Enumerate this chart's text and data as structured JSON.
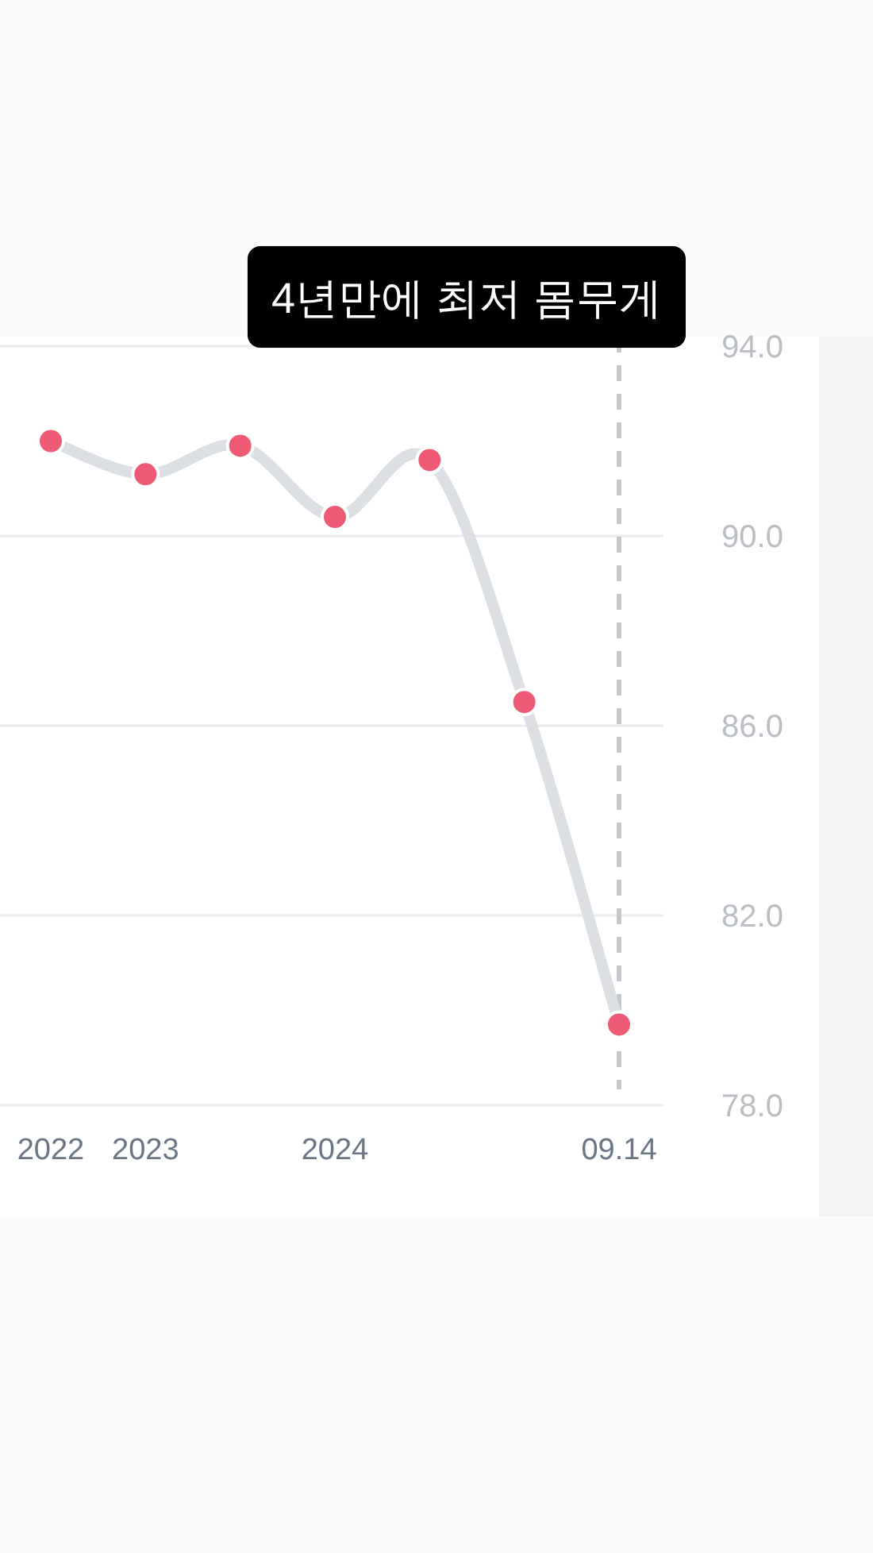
{
  "chart_data": {
    "type": "line",
    "categories": [
      "2022",
      "2023",
      null,
      "2024",
      null,
      null,
      "09.14"
    ],
    "series": [
      {
        "color": "#ef5b74",
        "values": [
          92.0,
          91.3,
          91.9,
          90.4,
          91.6,
          86.5,
          79.7
        ]
      }
    ],
    "ylim": [
      78,
      94
    ],
    "yticks": [
      {
        "value": 78,
        "label": "78.0"
      },
      {
        "value": 82,
        "label": "82.0"
      },
      {
        "value": 86,
        "label": "86.0"
      },
      {
        "value": 90,
        "label": "90.0"
      },
      {
        "value": 94,
        "label": "94.0"
      }
    ],
    "grid": "y",
    "marker": "circle",
    "ref_lines": [
      {
        "axis": "x",
        "value": "09.14",
        "label": "4년만에 최저 몸무게",
        "color": "#c4c7cc",
        "line_style": "dashed"
      }
    ]
  }
}
